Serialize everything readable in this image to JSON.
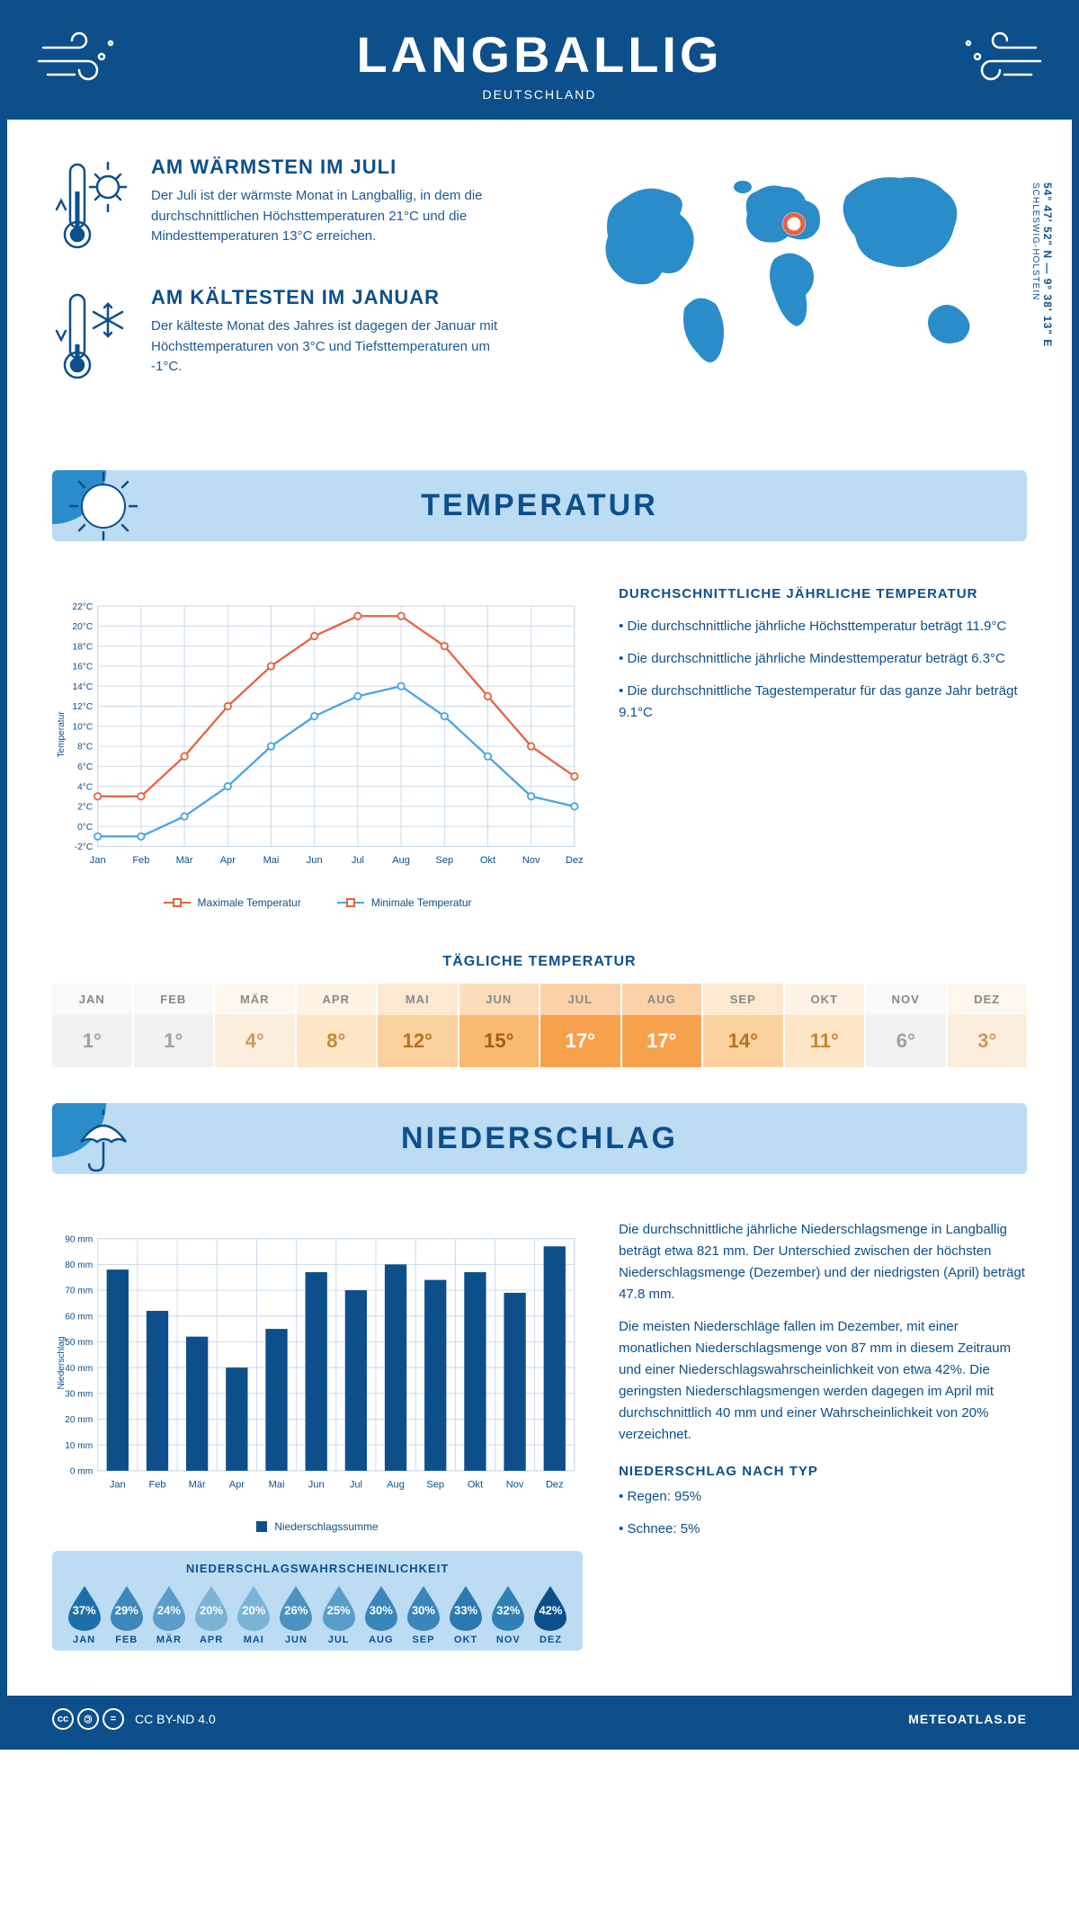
{
  "header": {
    "title": "LANGBALLIG",
    "subtitle": "DEUTSCHLAND"
  },
  "coords": {
    "lat": "54° 47' 52\" N — 9° 38' 13\" E",
    "region": "SCHLESWIG-HOLSTEIN"
  },
  "warm": {
    "title": "AM WÄRMSTEN IM JULI",
    "text": "Der Juli ist der wärmste Monat in Langballig, in dem die durchschnittlichen Höchsttemperaturen 21°C und die Mindesttemperaturen 13°C erreichen."
  },
  "cold": {
    "title": "AM KÄLTESTEN IM JANUAR",
    "text": "Der kälteste Monat des Jahres ist dagegen der Januar mit Höchsttemperaturen von 3°C und Tiefsttemperaturen um -1°C."
  },
  "temp_section": {
    "title": "TEMPERATUR"
  },
  "temp_chart": {
    "months": [
      "Jan",
      "Feb",
      "Mär",
      "Apr",
      "Mai",
      "Jun",
      "Jul",
      "Aug",
      "Sep",
      "Okt",
      "Nov",
      "Dez"
    ],
    "max": [
      3,
      3,
      7,
      12,
      16,
      19,
      21,
      21,
      18,
      13,
      8,
      5
    ],
    "min": [
      -1,
      -1,
      1,
      4,
      8,
      11,
      13,
      14,
      11,
      7,
      3,
      2
    ],
    "ylim": [
      -2,
      22
    ],
    "ystep": 2,
    "max_color": "#e8623f",
    "min_color": "#4aa6e0",
    "grid_color": "#c8d8e8",
    "legend_max": "Maximale Temperatur",
    "legend_min": "Minimale Temperatur",
    "yaxis_title": "Temperatur"
  },
  "temp_text": {
    "title": "DURCHSCHNITTLICHE JÄHRLICHE TEMPERATUR",
    "b1": "• Die durchschnittliche jährliche Höchsttemperatur beträgt 11.9°C",
    "b2": "• Die durchschnittliche jährliche Mindesttemperatur beträgt 6.3°C",
    "b3": "• Die durchschnittliche Tagestemperatur für das ganze Jahr beträgt 9.1°C"
  },
  "daily": {
    "title": "TÄGLICHE TEMPERATUR",
    "months": [
      "JAN",
      "FEB",
      "MÄR",
      "APR",
      "MAI",
      "JUN",
      "JUL",
      "AUG",
      "SEP",
      "OKT",
      "NOV",
      "DEZ"
    ],
    "temps": [
      "1°",
      "1°",
      "4°",
      "8°",
      "12°",
      "15°",
      "17°",
      "17°",
      "14°",
      "11°",
      "6°",
      "3°"
    ],
    "bg": [
      "#f3f2f1",
      "#f3f2f1",
      "#fbeedd",
      "#fde6c5",
      "#fbd29e",
      "#f9b96f",
      "#f6a24c",
      "#f6a24c",
      "#fbd29e",
      "#fde6c5",
      "#f3f2f1",
      "#fbeedd"
    ],
    "fg": [
      "#a0a0a0",
      "#a0a0a0",
      "#c99a5b",
      "#c88735",
      "#b57220",
      "#a55e0f",
      "#fff",
      "#fff",
      "#b57220",
      "#c88735",
      "#a0a0a0",
      "#c99a5b"
    ],
    "head_bg": [
      "#faf9f8",
      "#faf9f8",
      "#fdf7ee",
      "#fef3e4",
      "#fde9d1",
      "#fcddba",
      "#fbd2a8",
      "#fbd2a8",
      "#fde9d1",
      "#fef3e4",
      "#faf9f8",
      "#fdf7ee"
    ]
  },
  "precip_section": {
    "title": "NIEDERSCHLAG"
  },
  "precip_chart": {
    "months": [
      "Jan",
      "Feb",
      "Mär",
      "Apr",
      "Mai",
      "Jun",
      "Jul",
      "Aug",
      "Sep",
      "Okt",
      "Nov",
      "Dez"
    ],
    "values": [
      78,
      62,
      52,
      40,
      55,
      77,
      70,
      80,
      74,
      77,
      69,
      87
    ],
    "ylim": [
      0,
      90
    ],
    "ystep": 10,
    "bar_color": "#0d4f8b",
    "grid_color": "#c8d8e8",
    "legend": "Niederschlagssumme",
    "yaxis_title": "Niederschlag"
  },
  "precip_text": {
    "p1": "Die durchschnittliche jährliche Niederschlagsmenge in Langballig beträgt etwa 821 mm. Der Unterschied zwischen der höchsten Niederschlagsmenge (Dezember) und der niedrigsten (April) beträgt 47.8 mm.",
    "p2": "Die meisten Niederschläge fallen im Dezember, mit einer monatlichen Niederschlagsmenge von 87 mm in diesem Zeitraum und einer Niederschlagswahrscheinlichkeit von etwa 42%. Die geringsten Niederschlagsmengen werden dagegen im April mit durchschnittlich 40 mm und einer Wahrscheinlichkeit von 20% verzeichnet.",
    "type_title": "NIEDERSCHLAG NACH TYP",
    "type1": "• Regen: 95%",
    "type2": "• Schnee: 5%"
  },
  "prob": {
    "title": "NIEDERSCHLAGSWAHRSCHEINLICHKEIT",
    "months": [
      "JAN",
      "FEB",
      "MÄR",
      "APR",
      "MAI",
      "JUN",
      "JUL",
      "AUG",
      "SEP",
      "OKT",
      "NOV",
      "DEZ"
    ],
    "values": [
      "37%",
      "29%",
      "24%",
      "20%",
      "20%",
      "26%",
      "25%",
      "30%",
      "30%",
      "33%",
      "32%",
      "42%"
    ],
    "colors": [
      "#1e6fa8",
      "#3d88bb",
      "#5a9dc9",
      "#7ab3d6",
      "#7ab3d6",
      "#4a92c2",
      "#5a9dc9",
      "#3a85b9",
      "#3a85b9",
      "#2a79b0",
      "#3080b5",
      "#0d4f8b"
    ]
  },
  "footer": {
    "license": "CC BY-ND 4.0",
    "site": "METEOATLAS.DE"
  },
  "colors": {
    "primary": "#0d4f8b",
    "light": "#bcdcf4",
    "mid": "#2a8cc9"
  }
}
